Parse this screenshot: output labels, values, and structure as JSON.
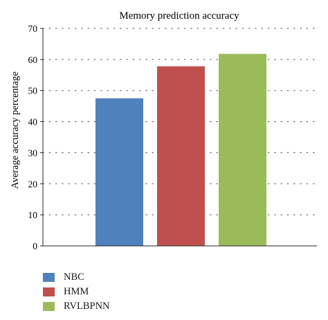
{
  "chart_data": {
    "type": "bar",
    "title": "Memory prediction accuracy",
    "xlabel": "",
    "ylabel": "Average accuracy percentage",
    "ylim": [
      0,
      70
    ],
    "yticks": [
      "0",
      "10",
      "20",
      "30",
      "40",
      "50",
      "60",
      "70"
    ],
    "grid": "horizontal dotted",
    "legend_position": "bottom-left",
    "series": [
      {
        "name": "NBC",
        "value": 47.5,
        "color": "#4f81bd"
      },
      {
        "name": "HMM",
        "value": 57.8,
        "color": "#c0504d"
      },
      {
        "name": "RVLBPNN",
        "value": 61.8,
        "color": "#9bbb59"
      }
    ]
  }
}
